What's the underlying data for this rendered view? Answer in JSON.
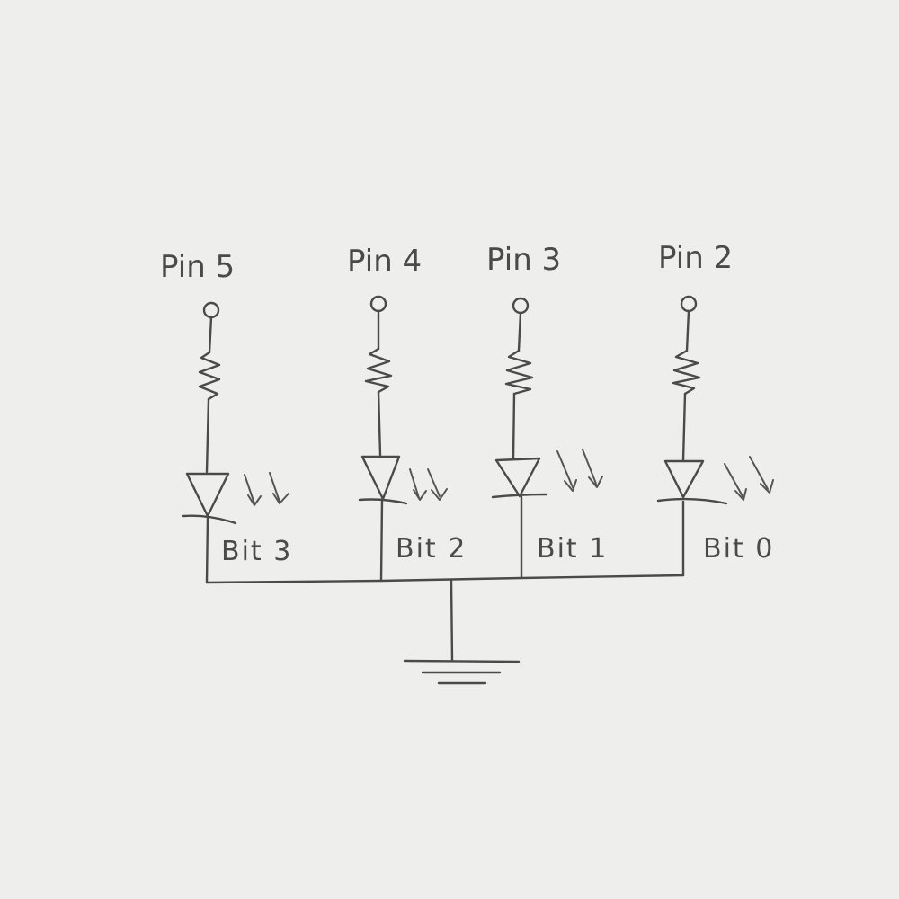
{
  "diagram": {
    "type": "circuit-schematic",
    "description_labels": {
      "pins": [
        "Pin 5",
        "Pin 4",
        "Pin 3",
        "Pin 2"
      ],
      "bits": [
        "Bit 3",
        "Bit 2",
        "Bit 1",
        "Bit 0"
      ]
    },
    "colors": {
      "paper": "#eeeeec",
      "pencil": "#4a4a48"
    }
  }
}
